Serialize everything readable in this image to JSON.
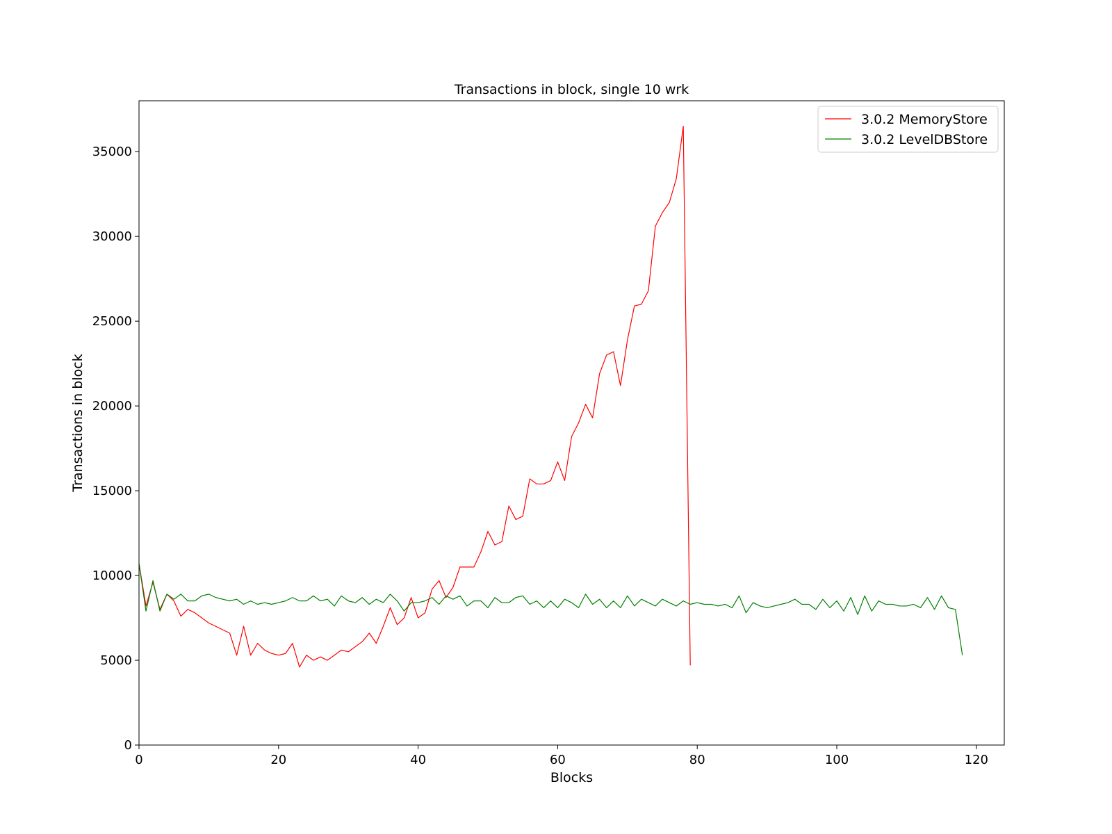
{
  "chart_data": {
    "type": "line",
    "title": "Transactions in block, single 10 wrk",
    "xlabel": "Blocks",
    "ylabel": "Transactions in block",
    "xlim": [
      0,
      124
    ],
    "ylim": [
      0,
      38000
    ],
    "xticks": [
      0,
      20,
      40,
      60,
      80,
      100,
      120
    ],
    "yticks": [
      0,
      5000,
      10000,
      15000,
      20000,
      25000,
      30000,
      35000
    ],
    "grid": false,
    "legend_position": "top-right",
    "series": [
      {
        "name": "3.0.2 MemoryStore",
        "color": "#ff0000",
        "x": [
          0,
          1,
          2,
          3,
          4,
          5,
          6,
          7,
          8,
          9,
          10,
          11,
          12,
          13,
          14,
          15,
          16,
          17,
          18,
          19,
          20,
          21,
          22,
          23,
          24,
          25,
          26,
          27,
          28,
          29,
          30,
          31,
          32,
          33,
          34,
          35,
          36,
          37,
          38,
          39,
          40,
          41,
          42,
          43,
          44,
          45,
          46,
          47,
          48,
          49,
          50,
          51,
          52,
          53,
          54,
          55,
          56,
          57,
          58,
          59,
          60,
          61,
          62,
          63,
          64,
          65,
          66,
          67,
          68,
          69,
          70,
          71,
          72,
          73,
          74,
          75,
          76,
          77,
          78,
          79
        ],
        "values": [
          10700,
          8200,
          9600,
          8000,
          8900,
          8500,
          7600,
          8000,
          7800,
          7500,
          7200,
          7000,
          6800,
          6600,
          5300,
          7000,
          5300,
          6000,
          5600,
          5400,
          5300,
          5400,
          6000,
          4600,
          5300,
          5000,
          5200,
          5000,
          5300,
          5600,
          5500,
          5800,
          6100,
          6600,
          6000,
          7000,
          8100,
          7100,
          7500,
          8700,
          7500,
          7800,
          9200,
          9700,
          8700,
          9300,
          10500,
          10500,
          10500,
          11400,
          12600,
          11800,
          12000,
          14100,
          13300,
          13500,
          15700,
          15400,
          15400,
          15600,
          16700,
          15600,
          18200,
          19000,
          20100,
          19300,
          21900,
          23000,
          23200,
          21200,
          23900,
          25900,
          26000,
          26800,
          30600,
          31400,
          32000,
          33400,
          36500,
          4700
        ]
      },
      {
        "name": "3.0.2 LevelDBStore",
        "color": "#008000",
        "x": [
          0,
          1,
          2,
          3,
          4,
          5,
          6,
          7,
          8,
          9,
          10,
          11,
          12,
          13,
          14,
          15,
          16,
          17,
          18,
          19,
          20,
          21,
          22,
          23,
          24,
          25,
          26,
          27,
          28,
          29,
          30,
          31,
          32,
          33,
          34,
          35,
          36,
          37,
          38,
          39,
          40,
          41,
          42,
          43,
          44,
          45,
          46,
          47,
          48,
          49,
          50,
          51,
          52,
          53,
          54,
          55,
          56,
          57,
          58,
          59,
          60,
          61,
          62,
          63,
          64,
          65,
          66,
          67,
          68,
          69,
          70,
          71,
          72,
          73,
          74,
          75,
          76,
          77,
          78,
          79,
          80,
          81,
          82,
          83,
          84,
          85,
          86,
          87,
          88,
          89,
          90,
          91,
          92,
          93,
          94,
          95,
          96,
          97,
          98,
          99,
          100,
          101,
          102,
          103,
          104,
          105,
          106,
          107,
          108,
          109,
          110,
          111,
          112,
          113,
          114,
          115,
          116,
          117,
          118
        ],
        "values": [
          10700,
          7900,
          9700,
          7900,
          8900,
          8600,
          8900,
          8500,
          8500,
          8800,
          8900,
          8700,
          8600,
          8500,
          8600,
          8300,
          8500,
          8300,
          8400,
          8300,
          8400,
          8500,
          8700,
          8500,
          8500,
          8800,
          8500,
          8600,
          8200,
          8800,
          8500,
          8400,
          8700,
          8300,
          8600,
          8400,
          8900,
          8500,
          7900,
          8400,
          8400,
          8500,
          8700,
          8300,
          8800,
          8600,
          8800,
          8200,
          8500,
          8500,
          8100,
          8700,
          8400,
          8400,
          8700,
          8800,
          8300,
          8500,
          8100,
          8500,
          8100,
          8600,
          8400,
          8100,
          8900,
          8300,
          8600,
          8100,
          8500,
          8100,
          8800,
          8200,
          8600,
          8400,
          8200,
          8600,
          8400,
          8200,
          8500,
          8300,
          8400,
          8300,
          8300,
          8200,
          8300,
          8100,
          8800,
          7800,
          8400,
          8200,
          8100,
          8200,
          8300,
          8400,
          8600,
          8300,
          8300,
          8000,
          8600,
          8100,
          8500,
          7900,
          8700,
          7700,
          8800,
          7900,
          8500,
          8300,
          8300,
          8200,
          8200,
          8300,
          8100,
          8700,
          8000,
          8800,
          8100,
          8000,
          5300
        ]
      }
    ]
  }
}
